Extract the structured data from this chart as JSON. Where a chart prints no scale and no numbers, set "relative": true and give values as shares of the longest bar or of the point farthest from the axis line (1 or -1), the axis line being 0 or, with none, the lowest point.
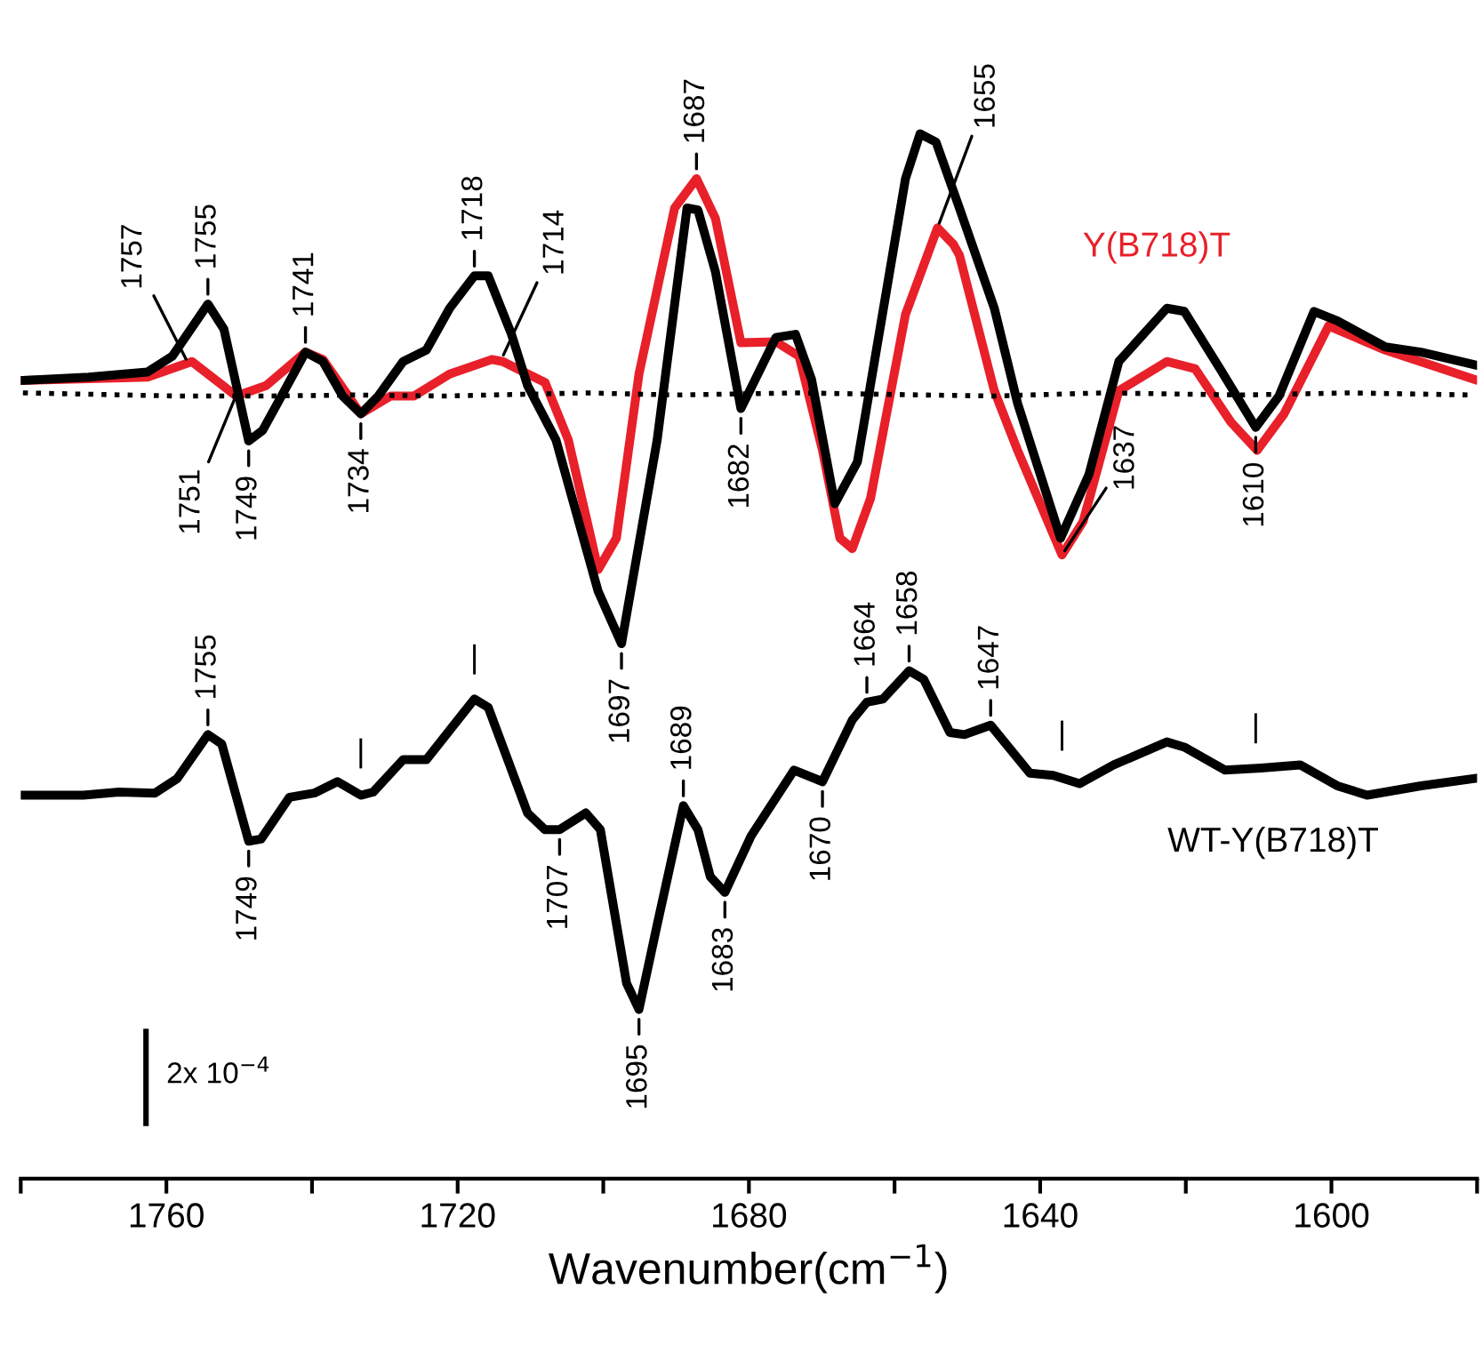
{
  "chart_data": {
    "type": "line",
    "relative": true,
    "xlabel": "Wavenumber(cm$^{−1}$)",
    "xlim": [
      1780,
      1580
    ],
    "xticks": [
      {
        "value": 1780,
        "label": null
      },
      1760,
      {
        "value": 1740,
        "label": null
      },
      1720,
      {
        "value": 1700,
        "label": null
      },
      1680,
      {
        "value": 1660,
        "label": null
      },
      1640,
      {
        "value": 1620,
        "label": null
      },
      1600,
      {
        "value": 1580,
        "label": null
      }
    ],
    "tick_labels": "x",
    "grid": false,
    "legend": false,
    "series": [
      {
        "color": "#000000",
        "x": [
          1779.7,
          1770.7,
          1762.6,
          1759.2,
          1754.3,
          1752.1,
          1748.7,
          1746.8,
          1743.8,
          1740.9,
          1738.5,
          1735.8,
          1733.3,
          1730.9,
          1727.5,
          1724.3,
          1721.1,
          1717.7,
          1715.8,
          1712.6,
          1710.4,
          1706.5,
          1700.7,
          1697.5,
          1692.6,
          1688.5,
          1687.0,
          1684.6,
          1681.1,
          1676.3,
          1673.6,
          1671.4,
          1668.2,
          1665.1,
          1658.5,
          1656.5,
          1654.3,
          1651.1,
          1646.3,
          1643.1,
          1637.2,
          1633.3,
          1629.2,
          1622.6,
          1620.2,
          1615.3,
          1610.4,
          1607.2,
          1602.4,
          1599.2,
          1592.6,
          1587.7,
          1580.4
        ],
        "values": [
          0.764,
          0.767,
          0.772,
          0.787,
          0.837,
          0.813,
          0.706,
          0.716,
          0.754,
          0.791,
          0.782,
          0.749,
          0.732,
          0.749,
          0.782,
          0.793,
          0.833,
          0.864,
          0.864,
          0.808,
          0.759,
          0.707,
          0.562,
          0.512,
          0.707,
          0.929,
          0.927,
          0.868,
          0.737,
          0.805,
          0.808,
          0.765,
          0.646,
          0.686,
          0.957,
          1.0,
          0.992,
          0.929,
          0.833,
          0.742,
          0.613,
          0.674,
          0.782,
          0.833,
          0.83,
          0.775,
          0.719,
          0.749,
          0.83,
          0.821,
          0.796,
          0.791,
          0.779
        ]
      },
      {
        "name": "Y(B718)T",
        "color": "#e8202a",
        "x": [
          1779.7,
          1762.6,
          1756.5,
          1750.4,
          1746.3,
          1740.9,
          1738.5,
          1733.3,
          1729.2,
          1726.0,
          1721.1,
          1715.3,
          1713.8,
          1708.0,
          1704.8,
          1700.7,
          1698.2,
          1695.1,
          1690.2,
          1687.2,
          1684.6,
          1681.1,
          1676.3,
          1673.1,
          1669.9,
          1667.5,
          1665.8,
          1663.3,
          1658.5,
          1654.1,
          1651.9,
          1651.1,
          1646.3,
          1643.1,
          1637.0,
          1634.1,
          1629.2,
          1622.6,
          1618.7,
          1613.8,
          1610.2,
          1606.5,
          1600.4,
          1592.6,
          1580.4
        ],
        "values": [
          0.764,
          0.767,
          0.782,
          0.749,
          0.759,
          0.791,
          0.784,
          0.732,
          0.749,
          0.749,
          0.77,
          0.784,
          0.782,
          0.762,
          0.707,
          0.583,
          0.613,
          0.77,
          0.929,
          0.957,
          0.919,
          0.8,
          0.801,
          0.787,
          0.697,
          0.613,
          0.603,
          0.651,
          0.827,
          0.91,
          0.894,
          0.884,
          0.754,
          0.697,
          0.597,
          0.629,
          0.754,
          0.782,
          0.775,
          0.724,
          0.697,
          0.732,
          0.816,
          0.793,
          0.765
        ]
      },
      {
        "color": "#000000",
        "line_style": "dotted",
        "x": [
          1779.7,
          1758.5,
          1746.3,
          1734.1,
          1721.9,
          1702.4,
          1690.2,
          1673.1,
          1656.0,
          1646.3,
          1631.6,
          1612.1,
          1597.5,
          1580.4
        ],
        "values": [
          0.752,
          0.749,
          0.749,
          0.75,
          0.749,
          0.752,
          0.75,
          0.752,
          0.75,
          0.749,
          0.752,
          0.75,
          0.752,
          0.75
        ]
      },
      {
        "name": "WT-Y(B718)T",
        "color": "#000000",
        "x": [
          1779.7,
          1771.4,
          1766.5,
          1761.6,
          1758.5,
          1754.3,
          1752.4,
          1748.7,
          1747.0,
          1743.1,
          1739.7,
          1736.5,
          1733.3,
          1731.6,
          1727.5,
          1724.3,
          1717.7,
          1715.8,
          1710.4,
          1708.0,
          1706.0,
          1702.4,
          1700.4,
          1696.8,
          1695.1,
          1692.6,
          1689.0,
          1687.0,
          1685.3,
          1683.3,
          1679.7,
          1673.8,
          1669.9,
          1665.8,
          1663.8,
          1661.6,
          1658.0,
          1656.0,
          1652.4,
          1650.4,
          1646.8,
          1641.4,
          1638.2,
          1634.6,
          1629.9,
          1622.6,
          1620.2,
          1614.6,
          1609.7,
          1604.3,
          1599.2,
          1595.1,
          1587.7,
          1580.4
        ],
        "values": [
          0.367,
          0.367,
          0.37,
          0.369,
          0.383,
          0.425,
          0.416,
          0.323,
          0.325,
          0.365,
          0.369,
          0.38,
          0.367,
          0.37,
          0.401,
          0.401,
          0.459,
          0.451,
          0.35,
          0.334,
          0.334,
          0.35,
          0.334,
          0.187,
          0.162,
          0.243,
          0.357,
          0.334,
          0.289,
          0.274,
          0.328,
          0.391,
          0.38,
          0.439,
          0.456,
          0.459,
          0.486,
          0.478,
          0.427,
          0.425,
          0.434,
          0.388,
          0.386,
          0.378,
          0.396,
          0.418,
          0.413,
          0.391,
          0.393,
          0.396,
          0.376,
          0.367,
          0.376,
          0.383
        ]
      }
    ],
    "annotations": [
      {
        "text": "1757",
        "x": 1757.0,
        "y": 0.78
      },
      {
        "text": "1755",
        "x": 1754.3,
        "y": 0.837
      },
      {
        "text": "1751",
        "x": 1750.4,
        "y": 0.75
      },
      {
        "text": "1749",
        "x": 1748.7,
        "y": 0.706
      },
      {
        "text": "1741",
        "x": 1740.9,
        "y": 0.791
      },
      {
        "text": "1734",
        "x": 1733.3,
        "y": 0.732
      },
      {
        "text": "1718",
        "x": 1717.7,
        "y": 0.864
      },
      {
        "text": "1714",
        "x": 1714.0,
        "y": 0.784
      },
      {
        "text": "1697",
        "x": 1697.5,
        "y": 0.512
      },
      {
        "text": "1687",
        "x": 1687.2,
        "y": 0.957
      },
      {
        "text": "1682",
        "x": 1681.1,
        "y": 0.737
      },
      {
        "text": "1655",
        "x": 1654.1,
        "y": 0.91
      },
      {
        "text": "1637",
        "x": 1637.0,
        "y": 0.597
      },
      {
        "text": "1610",
        "x": 1610.4,
        "y": 0.719
      },
      {
        "text": "1755",
        "x": 1754.3,
        "y": 0.425
      },
      {
        "text": "1749",
        "x": 1748.7,
        "y": 0.323
      },
      {
        "text": "1707",
        "x": 1706.0,
        "y": 0.334
      },
      {
        "text": "1695",
        "x": 1695.1,
        "y": 0.162
      },
      {
        "text": "1689",
        "x": 1689.0,
        "y": 0.357
      },
      {
        "text": "1683",
        "x": 1683.3,
        "y": 0.274
      },
      {
        "text": "1670",
        "x": 1669.9,
        "y": 0.38
      },
      {
        "text": "1664",
        "x": 1663.8,
        "y": 0.456
      },
      {
        "text": "1658",
        "x": 1658.0,
        "y": 0.486
      },
      {
        "text": "1647",
        "x": 1646.8,
        "y": 0.434
      },
      {
        "text": "|",
        "x": 1717.7,
        "y": 0.459
      },
      {
        "text": "|",
        "x": 1733.3,
        "y": 0.369
      },
      {
        "text": "|",
        "x": 1637.0,
        "y": 0.386
      },
      {
        "text": "|",
        "x": 1610.4,
        "y": 0.393
      },
      "2x 10$^{−4}$"
    ]
  }
}
